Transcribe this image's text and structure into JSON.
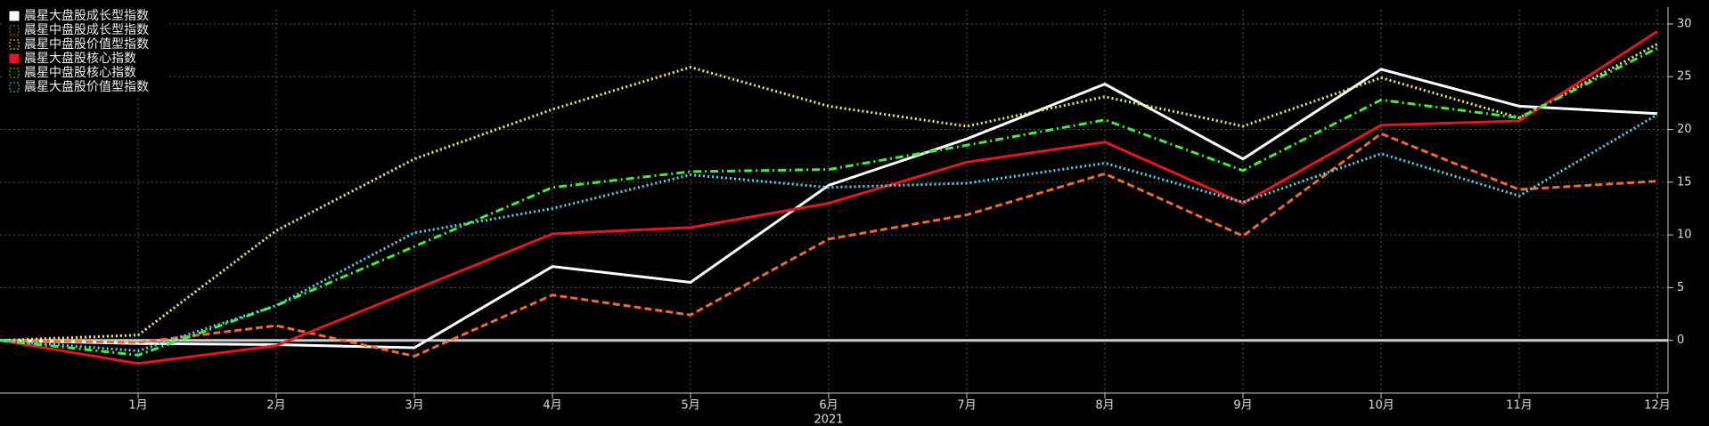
{
  "chart_data": {
    "type": "line",
    "x_label": "2021",
    "categories": [
      null,
      "1月",
      "2月",
      "3月",
      "4月",
      "5月",
      "6月",
      "7月",
      "8月",
      "9月",
      "10月",
      "11月",
      "12月"
    ],
    "ylim": [
      -5,
      30.5
    ],
    "yticks": [
      0,
      5,
      10,
      15,
      20,
      25,
      30
    ],
    "grid": true,
    "legend": "upper left",
    "series": [
      {
        "name": "晨星大盘股成长型指数",
        "color": "#ffffff",
        "dash": "solid",
        "values": [
          0,
          -0.3,
          -0.4,
          -0.7,
          7.0,
          5.5,
          14.7,
          19.1,
          24.3,
          17.2,
          25.7,
          22.2,
          21.5
        ]
      },
      {
        "name": "晨星中盘股成长型指数",
        "color": "#f26a2b",
        "dash": "dashed",
        "values": [
          0,
          -0.2,
          1.4,
          -1.5,
          4.3,
          2.4,
          9.6,
          11.9,
          15.8,
          9.9,
          19.6,
          14.3,
          15.1
        ]
      },
      {
        "name": "晨星中盘股价值型指数",
        "color": "#f2e86a",
        "dash": "dotted",
        "values": [
          0,
          0.5,
          10.4,
          17.2,
          21.9,
          25.9,
          22.2,
          20.3,
          23.1,
          20.3,
          24.9,
          21.1,
          28.1
        ]
      },
      {
        "name": "晨星大盘股核心指数",
        "color": "#e8141e",
        "dash": "solid",
        "values": [
          0,
          -2.2,
          -0.5,
          4.8,
          10.1,
          10.7,
          13.0,
          16.9,
          18.8,
          13.0,
          20.4,
          20.8,
          29.3
        ]
      },
      {
        "name": "晨星中盘股核心指数",
        "color": "#3ef03a",
        "dash": "dashdot",
        "values": [
          0,
          -1.4,
          3.3,
          8.9,
          14.5,
          16.0,
          16.2,
          18.5,
          20.9,
          16.1,
          22.8,
          21.1,
          27.7
        ]
      },
      {
        "name": "晨星大盘股价值型指数",
        "color": "#4fd8e8",
        "dash": "dotted",
        "values": [
          0,
          -1.0,
          3.3,
          10.2,
          12.5,
          15.7,
          14.5,
          14.9,
          16.8,
          13.1,
          17.7,
          13.7,
          21.4
        ]
      }
    ]
  }
}
